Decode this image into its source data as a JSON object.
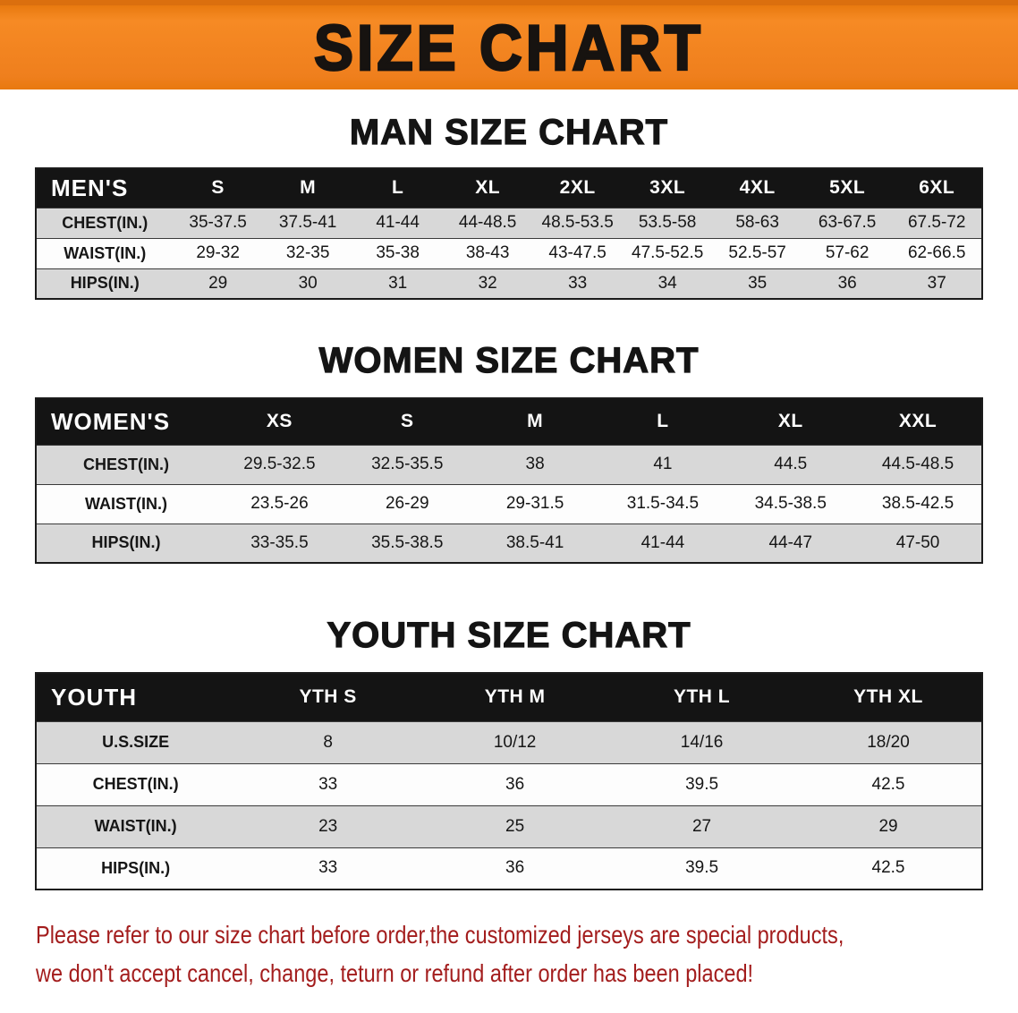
{
  "banner": {
    "title": "SIZE CHART"
  },
  "sections": [
    {
      "id": "men",
      "heading": "MAN SIZE CHART",
      "header_row": [
        "MEN'S",
        "S",
        "M",
        "L",
        "XL",
        "2XL",
        "3XL",
        "4XL",
        "5XL",
        "6XL"
      ],
      "rows": [
        [
          "CHEST(IN.)",
          "35-37.5",
          "37.5-41",
          "41-44",
          "44-48.5",
          "48.5-53.5",
          "53.5-58",
          "58-63",
          "63-67.5",
          "67.5-72"
        ],
        [
          "WAIST(IN.)",
          "29-32",
          "32-35",
          "35-38",
          "38-43",
          "43-47.5",
          "47.5-52.5",
          "52.5-57",
          "57-62",
          "62-66.5"
        ],
        [
          "HIPS(IN.)",
          "29",
          "30",
          "31",
          "32",
          "33",
          "34",
          "35",
          "36",
          "37"
        ]
      ]
    },
    {
      "id": "women",
      "heading": "WOMEN SIZE CHART",
      "header_row": [
        "WOMEN'S",
        "XS",
        "S",
        "M",
        "L",
        "XL",
        "XXL"
      ],
      "rows": [
        [
          "CHEST(IN.)",
          "29.5-32.5",
          "32.5-35.5",
          "38",
          "41",
          "44.5",
          "44.5-48.5"
        ],
        [
          "WAIST(IN.)",
          "23.5-26",
          "26-29",
          "29-31.5",
          "31.5-34.5",
          "34.5-38.5",
          "38.5-42.5"
        ],
        [
          "HIPS(IN.)",
          "33-35.5",
          "35.5-38.5",
          "38.5-41",
          "41-44",
          "44-47",
          "47-50"
        ]
      ]
    },
    {
      "id": "youth",
      "heading": "YOUTH SIZE CHART",
      "header_row": [
        "YOUTH",
        "YTH S",
        "YTH M",
        "YTH L",
        "YTH XL"
      ],
      "rows": [
        [
          "U.S.SIZE",
          "8",
          "10/12",
          "14/16",
          "18/20"
        ],
        [
          "CHEST(IN.)",
          "33",
          "36",
          "39.5",
          "42.5"
        ],
        [
          "WAIST(IN.)",
          "23",
          "25",
          "27",
          "29"
        ],
        [
          "HIPS(IN.)",
          "33",
          "36",
          "39.5",
          "42.5"
        ]
      ]
    }
  ],
  "footer": {
    "lines": [
      "Please refer to our size chart before order,the customized jerseys are special products,",
      "we don't accept cancel, change, teturn or refund after order has been placed!"
    ]
  },
  "colors": {
    "banner_bg": "#f08021",
    "table_header_bg": "#141414",
    "row_alt_bg": "#d8d8d8",
    "footer_text": "#a31d1d"
  }
}
